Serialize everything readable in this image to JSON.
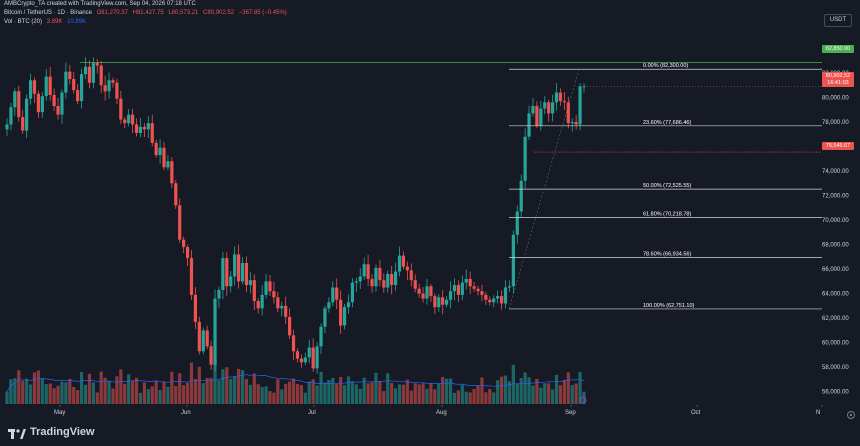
{
  "header": {
    "line1": "AMBCrypto_TA created with TradingView.com, Sep 04, 2026 07:18 UTC",
    "symbol": "Bitcoin / TetherUS · 1D · Binance",
    "o": "O81,270.37",
    "h": "H81,427.75",
    "l": "L80,573.21",
    "c": "C80,902.52",
    "chg": "−367.85 (−0.45%)",
    "vol_label": "Vol · BTC (20)",
    "vol_val1": "3.89K",
    "vol_val2": "10.89K"
  },
  "currency_button": "USDT",
  "price_axis": [
    "84,000.00",
    "82,000.00",
    "80,000.00",
    "78,000.00",
    "76,000.00",
    "74,000.00",
    "72,000.00",
    "70,000.00",
    "68,000.00",
    "66,000.00",
    "64,000.00",
    "62,000.00",
    "60,000.00",
    "58,000.00",
    "56,000.00"
  ],
  "time_axis": [
    "May",
    "Jun",
    "Jul",
    "Aug",
    "Sep",
    "Oct",
    "N"
  ],
  "price_tags": {
    "high": "82,850.00",
    "last": "80,902.52",
    "countdown": "16:41:03",
    "level": "75,545.67"
  },
  "fib_levels": [
    {
      "label": "0.00% (82,300.00)"
    },
    {
      "label": "23.60% (77,686.46)"
    },
    {
      "label": "50.00% (72,525.55)"
    },
    {
      "label": "61.80% (70,218.78)"
    },
    {
      "label": "78.60% (66,934.56)"
    },
    {
      "label": "100.00% (62,751.10)"
    }
  ],
  "brand": "TradingView",
  "colors": {
    "up": "#26a69a",
    "down": "#ef5350",
    "bg": "#161a25",
    "fib": "#d1d4dc",
    "high_line": "#4caf50"
  },
  "chart_data": {
    "type": "candlestick",
    "title": "Bitcoin / TetherUS · 1D · Binance",
    "ylim": [
      55000,
      85500
    ],
    "series_note": "daily candles, May–Sep 4",
    "closes": [
      77800,
      79200,
      80500,
      78400,
      77300,
      79900,
      81400,
      80300,
      78800,
      80100,
      81700,
      80200,
      79300,
      78600,
      80400,
      82100,
      81500,
      80600,
      79700,
      81900,
      82500,
      81200,
      82800,
      82600,
      81000,
      80500,
      81400,
      81200,
      79900,
      78200,
      77900,
      78600,
      77800,
      77100,
      77600,
      77400,
      77900,
      76300,
      75300,
      75900,
      74300,
      74800,
      73000,
      71200,
      68400,
      67800,
      66900,
      63900,
      61700,
      59300,
      61000,
      59700,
      58200,
      63600,
      64300,
      66900,
      64600,
      65400,
      67200,
      65000,
      66500,
      64700,
      65100,
      63400,
      62800,
      63900,
      65000,
      64200,
      63700,
      62800,
      63000,
      62100,
      60600,
      59300,
      58700,
      58400,
      58800,
      59600,
      57900,
      59700,
      61300,
      62800,
      63300,
      64500,
      63500,
      61400,
      62900,
      63300,
      64900,
      65000,
      65400,
      66400,
      65200,
      64600,
      66100,
      65100,
      64500,
      65600,
      64700,
      65800,
      67100,
      66200,
      65900,
      65100,
      64400,
      64000,
      63600,
      64600,
      63800,
      62900,
      63700,
      63100,
      63500,
      64200,
      64700,
      63900,
      64900,
      65200,
      64600,
      64400,
      64200,
      63900,
      63500,
      63300,
      63600,
      63800,
      63200,
      64500,
      64600,
      68800,
      70700,
      73200,
      76800,
      78700,
      79300,
      77700,
      79100,
      79600,
      78700,
      79600,
      80400,
      79700,
      79600,
      77900,
      78000,
      77800,
      80900,
      80900
    ]
  }
}
